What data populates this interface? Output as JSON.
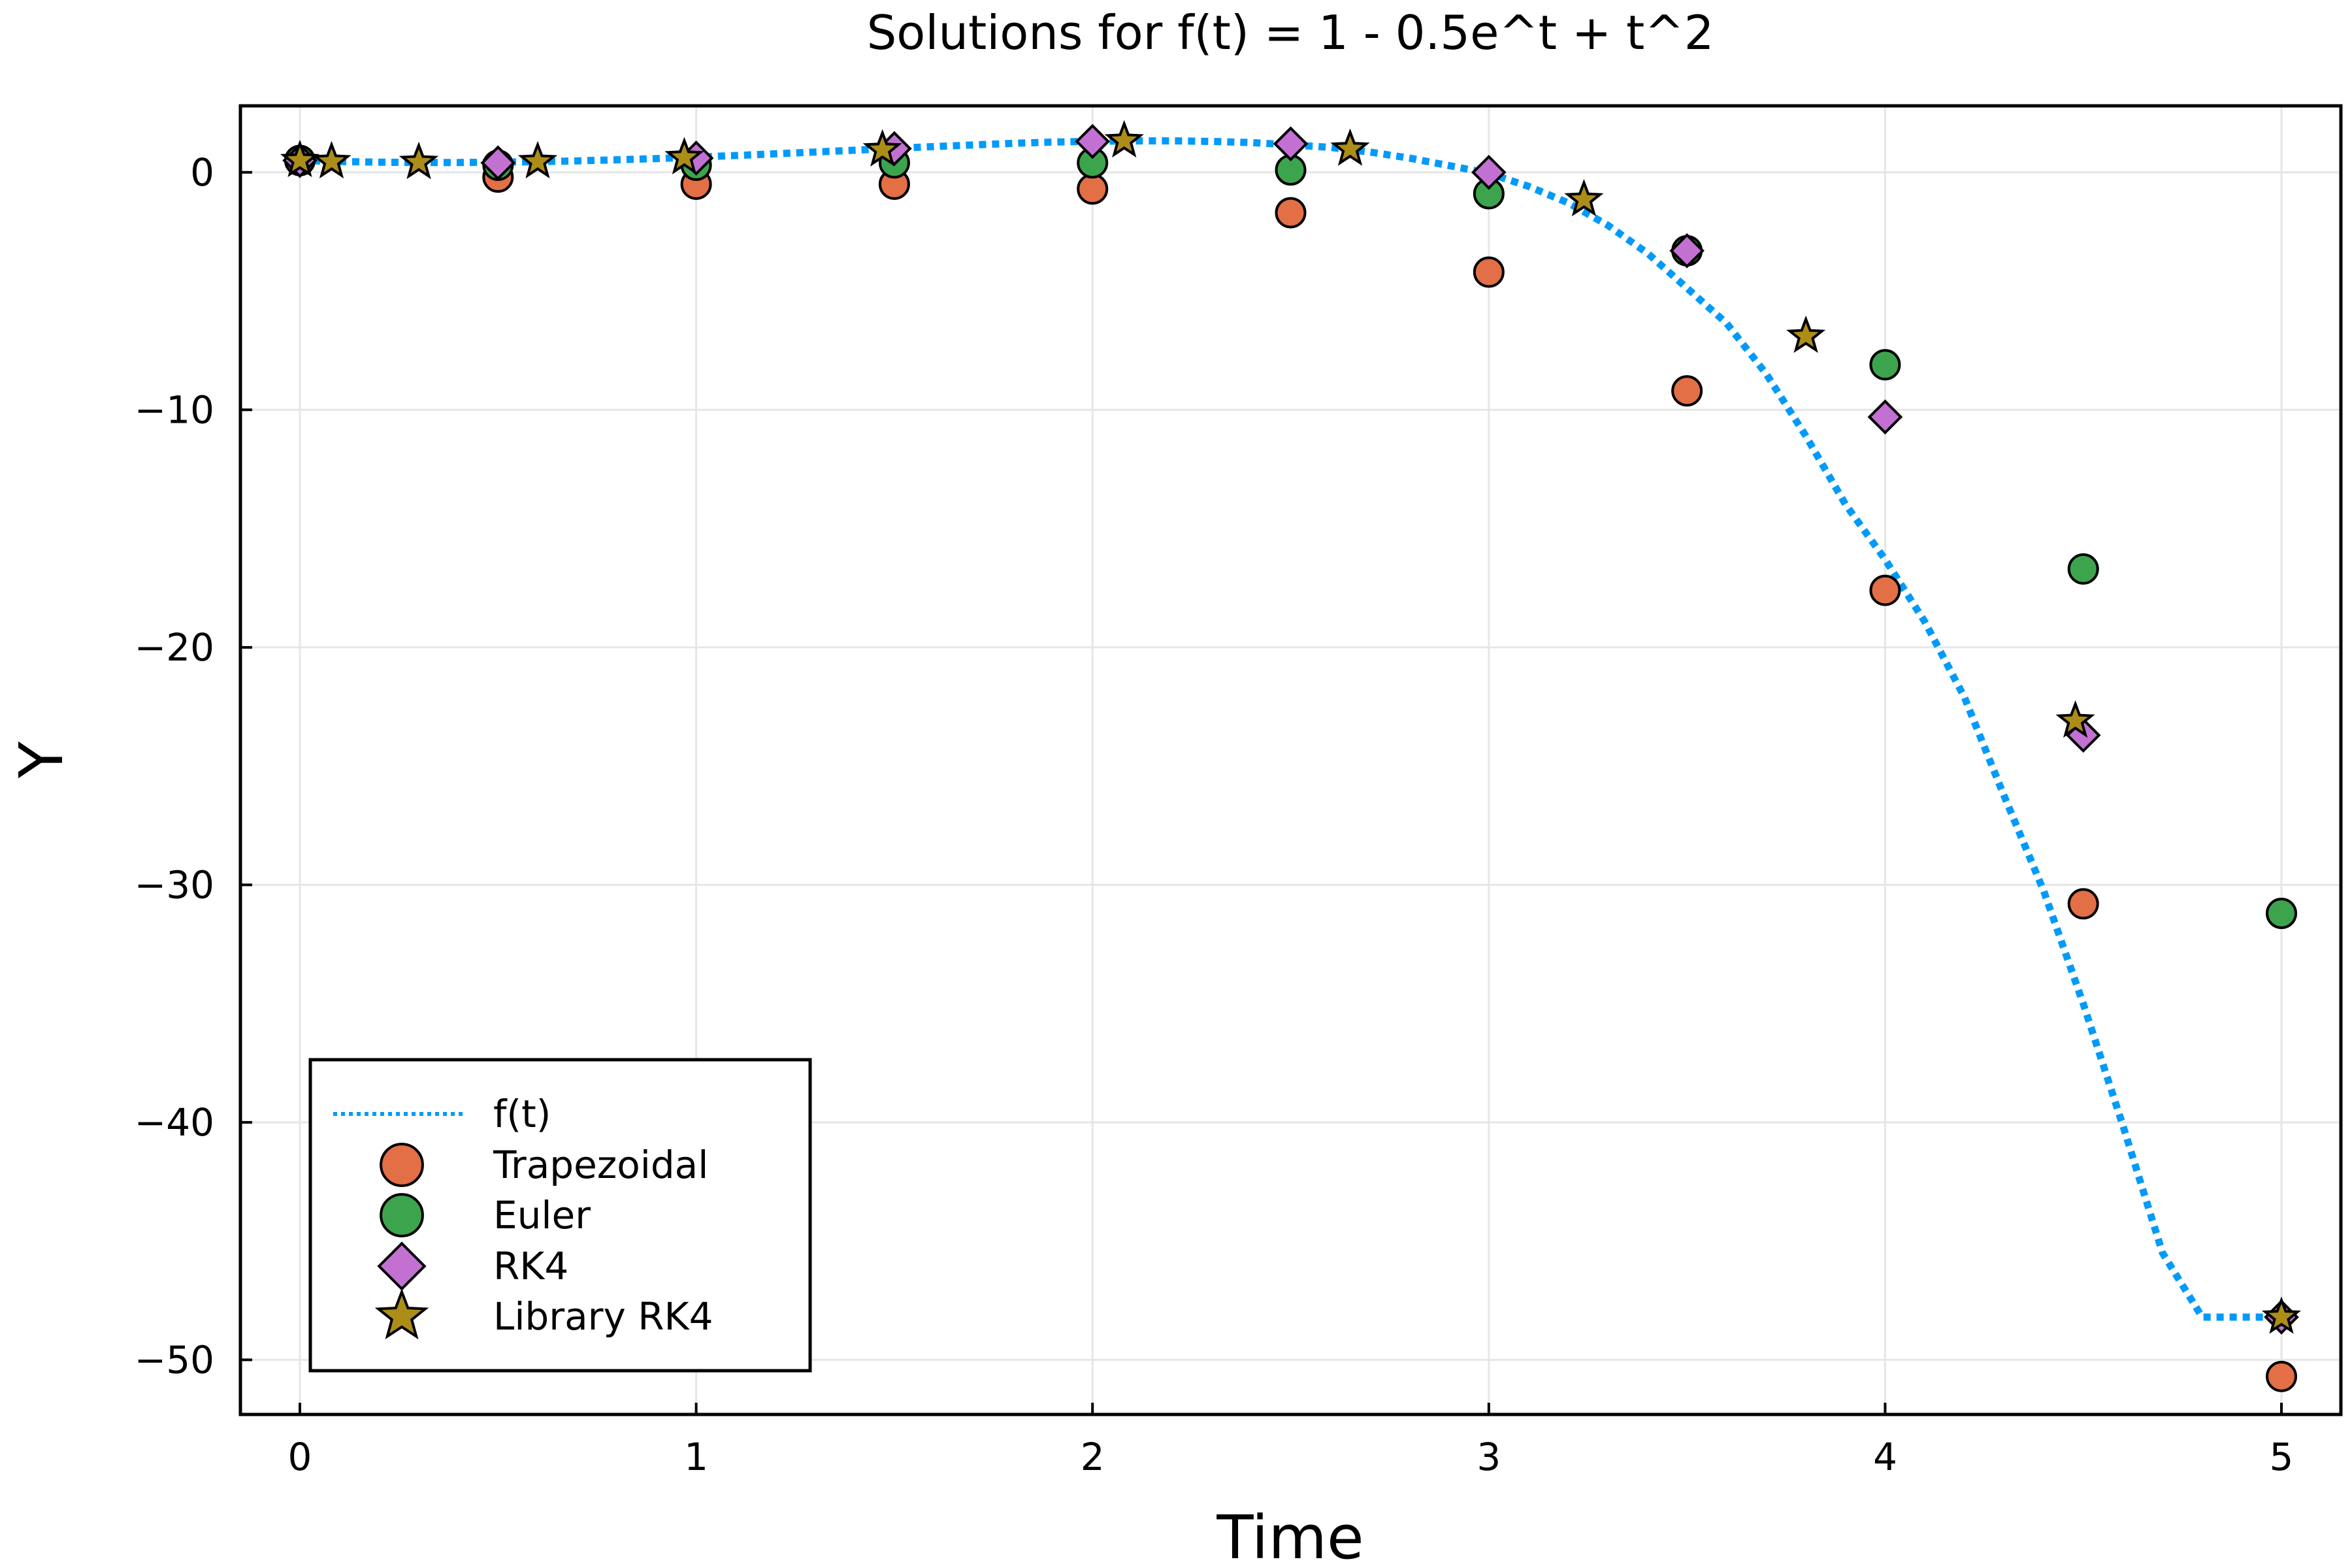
{
  "chart_data": {
    "type": "scatter",
    "title": "Solutions for f(t) = 1 - 0.5e^t + t^2",
    "xlabel": "Time",
    "ylabel": "Y",
    "xlim": [
      -0.15,
      5.15
    ],
    "ylim": [
      -52.3,
      2.8
    ],
    "xticks": [
      0,
      1,
      2,
      3,
      4,
      5
    ],
    "yticks": [
      0,
      -10,
      -20,
      -30,
      -40,
      -50
    ],
    "xtick_labels": [
      "0",
      "1",
      "2",
      "3",
      "4",
      "5"
    ],
    "ytick_labels": [
      "0",
      "−10",
      "−20",
      "−30",
      "−40",
      "−50"
    ],
    "grid": true,
    "legend_position": "bottom-left",
    "series": [
      {
        "name": "f(t)",
        "style": "dotted-line",
        "color": "#009AFA",
        "x": [
          0.0,
          0.1,
          0.2,
          0.3,
          0.4,
          0.5,
          0.6,
          0.7,
          0.8,
          0.9,
          1.0,
          1.1,
          1.2,
          1.3,
          1.4,
          1.5,
          1.6,
          1.7,
          1.8,
          1.9,
          2.0,
          2.1,
          2.2,
          2.3,
          2.4,
          2.5,
          2.6,
          2.7,
          2.8,
          2.9,
          3.0,
          3.1,
          3.2,
          3.3,
          3.4,
          3.5,
          3.6,
          3.7,
          3.8,
          3.9,
          4.0,
          4.1,
          4.2,
          4.3,
          4.4,
          4.5,
          4.6,
          4.7,
          4.8,
          4.9,
          5.0
        ],
        "y": [
          0.5,
          0.457,
          0.429,
          0.415,
          0.414,
          0.426,
          0.449,
          0.483,
          0.527,
          0.58,
          0.641,
          0.708,
          0.78,
          0.855,
          0.932,
          1.009,
          1.084,
          1.155,
          1.22,
          1.276,
          1.305,
          1.324,
          1.325,
          1.303,
          1.254,
          1.159,
          1.05,
          0.854,
          0.598,
          0.282,
          -0.043,
          -0.59,
          -1.282,
          -2.225,
          -3.399,
          -4.873,
          -6.357,
          -8.488,
          -11.102,
          -13.981,
          -16.299,
          -18.923,
          -22.1,
          -26.25,
          -30.25,
          -35.01,
          -40.14,
          -45.5,
          -48.2,
          -48.2,
          -48.2
        ]
      },
      {
        "name": "Trapezoidal",
        "marker": "circle",
        "color": "#E26F46",
        "x": [
          0,
          0.5,
          1,
          1.5,
          2,
          2.5,
          3,
          3.5,
          4,
          4.5,
          5
        ],
        "y": [
          0.5,
          -0.2,
          -0.5,
          -0.5,
          -0.7,
          -1.7,
          -4.2,
          -9.2,
          -17.6,
          -30.8,
          -50.7
        ]
      },
      {
        "name": "Euler",
        "marker": "circle",
        "color": "#3DA44E",
        "x": [
          0,
          0.5,
          1,
          1.5,
          2,
          2.5,
          3,
          3.5,
          4,
          4.5,
          5
        ],
        "y": [
          0.5,
          0.3,
          0.3,
          0.4,
          0.4,
          0.1,
          -0.9,
          -3.3,
          -8.1,
          -16.7,
          -31.2
        ]
      },
      {
        "name": "RK4",
        "marker": "diamond",
        "color": "#C271D2",
        "x": [
          0,
          0.5,
          1,
          1.5,
          2,
          2.5,
          3,
          3.5,
          4,
          4.5,
          5
        ],
        "y": [
          0.5,
          0.4,
          0.6,
          1.0,
          1.3,
          1.2,
          0.0,
          -3.3,
          -10.3,
          -23.7,
          -48.2
        ]
      },
      {
        "name": "Library RK4",
        "marker": "star",
        "color": "#AC8D18",
        "x": [
          0,
          0.08,
          0.3,
          0.6,
          0.97,
          1.47,
          2.08,
          2.65,
          3.24,
          3.8,
          4.48,
          5.0
        ],
        "y": [
          0.5,
          0.45,
          0.42,
          0.45,
          0.62,
          0.95,
          1.33,
          0.98,
          -1.15,
          -6.9,
          -23.1,
          -48.2
        ]
      }
    ],
    "colors": {
      "background": "#ffffff",
      "grid": "#e6e6e6",
      "axis": "#000000"
    }
  }
}
